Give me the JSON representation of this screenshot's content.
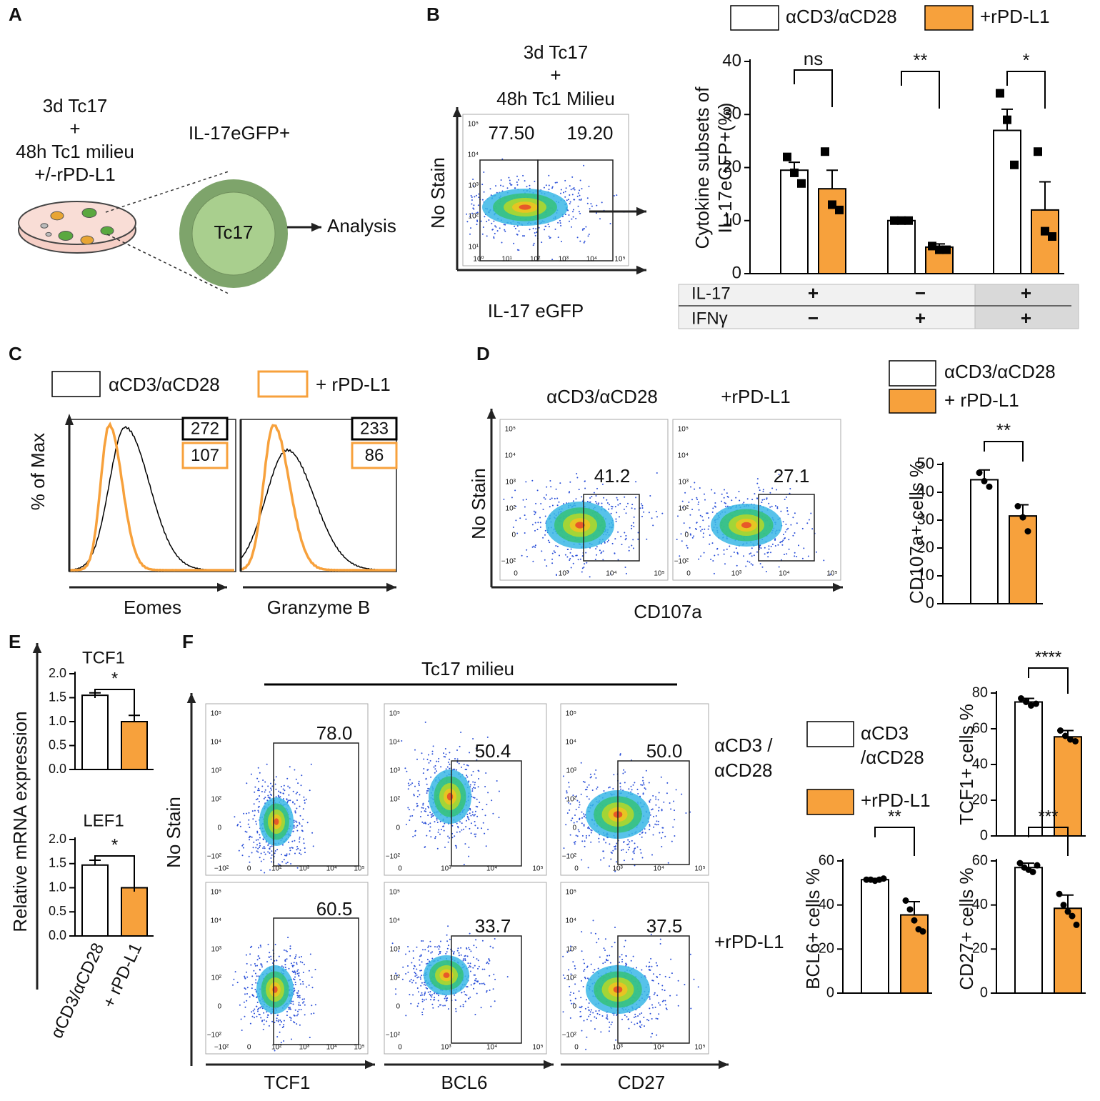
{
  "panel_labels": [
    "A",
    "B",
    "C",
    "D",
    "E",
    "F"
  ],
  "panel_a": {
    "condition_lines": [
      "3d Tc17",
      "+",
      "48h Tc1 milieu",
      "+/-rPD-L1"
    ],
    "cell_label": "IL-17eGFP+",
    "cell": "Tc17",
    "output": "Analysis"
  },
  "panel_b": {
    "title_lines": [
      "3d Tc17",
      "+",
      "48h Tc1 Milieu"
    ],
    "ylabel": "No Stain",
    "xlabel": "IL-17 eGFP"
  },
  "panel_c": {
    "legend": [
      "αCD3/αCD28",
      "+ rPD-L1"
    ],
    "colors": [
      "#000000",
      "#f7a13c"
    ],
    "ylabel": "% of Max",
    "plots": [
      {
        "xlabel": "Eomes",
        "mfi": [
          272,
          107
        ]
      },
      {
        "xlabel": "Granzyme B",
        "mfi": [
          233,
          86
        ]
      }
    ]
  },
  "panel_d": {
    "columns": [
      "αCD3/αCD28",
      "+rPD-L1"
    ],
    "ylabel": "No Stain",
    "xlabel": "CD107a"
  },
  "panel_e": {
    "ylabel": "Relative mRNA expression"
  },
  "panel_f": {
    "title": "Tc17 milieu",
    "row_labels": [
      [
        "αCD3 /",
        "αCD28"
      ],
      [
        "+rPD-L1"
      ]
    ],
    "ylabel": "No Stain",
    "xlabels": [
      "TCF1",
      "BCL6",
      "CD27"
    ]
  },
  "flow_plots": [
    {
      "gates": [
        {
          "value": 77.5,
          "label": "77.50"
        },
        {
          "value": 19.2,
          "label": "19.20"
        }
      ],
      "xticks": [
        "10⁰",
        "10¹",
        "10²",
        "10³",
        "10⁴",
        "10⁵"
      ],
      "yticks": [
        "10⁵",
        "10⁴",
        "10³",
        "10²",
        "10¹"
      ]
    },
    {
      "gates": [
        41.2
      ],
      "xticks": [
        0,
        "10³",
        "10⁴",
        "10⁵"
      ],
      "yticks": [
        "10⁵",
        "10⁴",
        "10³",
        "10²",
        0,
        "−10²"
      ]
    },
    {
      "gates": [
        27.1
      ],
      "xticks": [
        0,
        "10³",
        "10⁴",
        "10⁵"
      ],
      "yticks": [
        "10⁵",
        "10⁴",
        "10³",
        "10²",
        0,
        "−10²"
      ]
    },
    {
      "gates": [
        {
          "value": 78,
          "label": "78.0"
        }
      ],
      "xticks": [
        "−10²",
        0,
        "10²",
        "10³",
        "10⁴",
        "10⁵"
      ],
      "yticks": [
        "10⁵",
        "10⁴",
        "10³",
        "10²",
        0,
        "−10²"
      ]
    },
    {
      "gates": [
        50.4
      ],
      "xticks": [
        0,
        "10³",
        "10⁴",
        "10⁵"
      ],
      "yticks": [
        "10⁵",
        "10⁴",
        "10³",
        "10²",
        0,
        "−10²"
      ]
    },
    {
      "gates": [
        {
          "value": 50,
          "label": "50.0"
        }
      ],
      "xticks": [
        0,
        "10³",
        "10⁴",
        "10⁵"
      ],
      "yticks": [
        "10⁵",
        "10⁴",
        "10³",
        "10²",
        0,
        "−10²"
      ]
    },
    {
      "gates": [
        60.5
      ],
      "xticks": [
        "−10²",
        0,
        "10²",
        "10³",
        "10⁴",
        "10⁵"
      ],
      "yticks": [
        "10⁵",
        "10⁴",
        "10³",
        "10²",
        0,
        "−10²"
      ]
    },
    {
      "gates": [
        33.7
      ],
      "xticks": [
        0,
        "10³",
        "10⁴",
        "10⁵"
      ],
      "yticks": [
        "10⁵",
        "10⁴",
        "10³",
        "10²",
        0,
        "−10²"
      ]
    },
    {
      "gates": [
        37.5
      ],
      "xticks": [
        0,
        "10³",
        "10⁴",
        "10⁵"
      ],
      "yticks": [
        "10⁵",
        "10⁴",
        "10³",
        "10²",
        0,
        "−10²"
      ]
    }
  ],
  "chart_data": [
    {
      "type": "bar",
      "ylabel": [
        "Cytokine subsets of",
        "IL-17eGFP+(%)"
      ],
      "ylim": [
        0,
        40
      ],
      "yticks": [
        0,
        10,
        20,
        30,
        40
      ],
      "series": [
        {
          "name": "αCD3/αCD28",
          "color": "#ffffff",
          "values": [
            19.5,
            10,
            27
          ],
          "errors": [
            1.5,
            0.3,
            4
          ],
          "points": [
            [
              22,
              19,
              17
            ],
            [
              10,
              10,
              10
            ],
            [
              34,
              29,
              20.5
            ]
          ]
        },
        {
          "name": "+rPD-L1",
          "color": "#f7a13c",
          "values": [
            16,
            5,
            12
          ],
          "errors": [
            3.5,
            0.6,
            5.3
          ],
          "points": [
            [
              23,
              13,
              12
            ],
            [
              5.2,
              4.5,
              4.5
            ],
            [
              23,
              8,
              7
            ]
          ]
        }
      ],
      "significance": [
        "ns",
        "**",
        "*"
      ],
      "table": {
        "rows": [
          {
            "label": "IL-17",
            "cells": [
              "+",
              "−",
              "+"
            ]
          },
          {
            "label": "IFNγ",
            "cells": [
              "−",
              "+",
              "+"
            ]
          }
        ]
      }
    },
    {
      "type": "bar",
      "ylabel": "CD107a+ cells %",
      "ylim": [
        0,
        50
      ],
      "yticks": [
        0,
        10,
        20,
        30,
        40,
        50
      ],
      "series": [
        {
          "name": "αCD3/αCD28",
          "color": "#ffffff",
          "values": [
            44.5
          ],
          "errors": [
            3.5
          ],
          "points": [
            [
              47,
              44,
              42
            ]
          ]
        },
        {
          "name": "+ rPD-L1",
          "color": "#f7a13c",
          "values": [
            31.5
          ],
          "errors": [
            4
          ],
          "points": [
            [
              35,
              31,
              26
            ]
          ]
        }
      ],
      "significance": [
        "**"
      ]
    },
    {
      "type": "bar",
      "title": "TCF1",
      "ylim": [
        0,
        2
      ],
      "yticks": [
        {
          "value": 0,
          "label": "0.0"
        },
        0.5,
        {
          "value": 1,
          "label": "1.0"
        },
        1.5,
        {
          "value": 2,
          "label": "2.0"
        }
      ],
      "series": [
        {
          "color": "#ffffff",
          "values": [
            1.55
          ],
          "errors": [
            0.05
          ]
        },
        {
          "color": "#f7a13c",
          "values": [
            1.0
          ],
          "errors": [
            0.13
          ]
        }
      ],
      "significance": [
        "*"
      ]
    },
    {
      "type": "bar",
      "title": "LEF1",
      "ylim": [
        0,
        2
      ],
      "yticks": [
        {
          "value": 0,
          "label": "0.0"
        },
        0.5,
        {
          "value": 1,
          "label": "1.0"
        },
        1.5,
        {
          "value": 2,
          "label": "2.0"
        }
      ],
      "series": [
        {
          "name": "αCD3/αCD28",
          "color": "#ffffff",
          "values": [
            1.47
          ],
          "errors": [
            0.1
          ]
        },
        {
          "name": "+ rPD-L1",
          "color": "#f7a13c",
          "values": [
            1.0
          ],
          "errors": [
            0
          ]
        }
      ],
      "significance": [
        "*"
      ]
    },
    {
      "type": "bar",
      "ylabel": "TCF1+ cells %",
      "ylim": [
        0,
        80
      ],
      "yticks": [
        0,
        20,
        40,
        60,
        80
      ],
      "series": [
        {
          "name": "αCD3 /αCD28",
          "color": "#ffffff",
          "values": [
            75
          ],
          "errors": [
            2
          ],
          "points": [
            [
              77,
              75,
              73,
              74
            ]
          ]
        },
        {
          "name": "+rPD-L1",
          "color": "#f7a13c",
          "values": [
            55.5
          ],
          "errors": [
            3.5
          ],
          "points": [
            [
              59,
              56,
              54,
              53
            ]
          ]
        }
      ],
      "significance": [
        "****"
      ]
    },
    {
      "type": "bar",
      "ylabel": "BCL6+ cells %",
      "ylim": [
        0,
        60
      ],
      "yticks": [
        0,
        20,
        40,
        60
      ],
      "series": [
        {
          "color": "#ffffff",
          "values": [
            51.5
          ],
          "errors": [
            0.5
          ],
          "points": [
            [
              51.5,
              51.5,
              51,
              51.5,
              52
            ]
          ]
        },
        {
          "color": "#f7a13c",
          "values": [
            35.5
          ],
          "errors": [
            6
          ],
          "points": [
            [
              42,
              38,
              33,
              29,
              28
            ]
          ]
        }
      ],
      "significance": [
        "**"
      ]
    },
    {
      "type": "bar",
      "ylabel": "CD27+ cells %",
      "ylim": [
        0,
        60
      ],
      "yticks": [
        0,
        20,
        40,
        60
      ],
      "series": [
        {
          "color": "#ffffff",
          "values": [
            57
          ],
          "errors": [
            2
          ],
          "points": [
            [
              59,
              57,
              56,
              55,
              58
            ]
          ]
        },
        {
          "color": "#f7a13c",
          "values": [
            38.5
          ],
          "errors": [
            6
          ],
          "points": [
            [
              45,
              40,
              37,
              35,
              31
            ]
          ]
        }
      ],
      "significance": [
        "***"
      ]
    }
  ]
}
